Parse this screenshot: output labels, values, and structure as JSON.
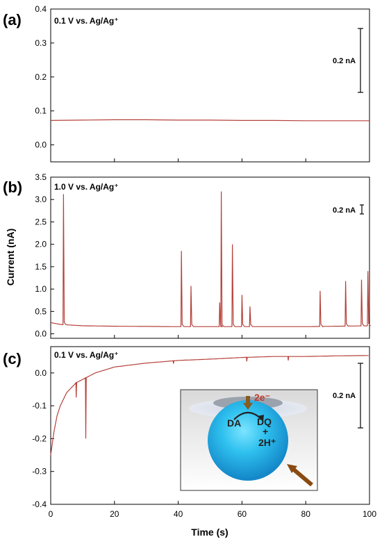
{
  "figure": {
    "xlabel": "Time (s)",
    "ylabel": "Current (nA)",
    "line_color": "#b5413a",
    "scale_bar_label": "0.2 nA"
  },
  "chart_data": [
    {
      "type": "line",
      "panel_label": "(a)",
      "annotation": "0.1 V vs. Ag/Ag⁺",
      "xlim": [
        0,
        100
      ],
      "ylim": [
        -0.05,
        0.4
      ],
      "yticks": [
        0.0,
        0.1,
        0.2,
        0.3,
        0.4
      ],
      "ytick_labels": [
        "0.0",
        "0.1",
        "0.2",
        "0.3",
        "0.4"
      ],
      "x": [
        0,
        10,
        20,
        30,
        40,
        50,
        60,
        70,
        80,
        90,
        100
      ],
      "y": [
        0.072,
        0.073,
        0.074,
        0.074,
        0.073,
        0.073,
        0.072,
        0.072,
        0.071,
        0.071,
        0.071
      ]
    },
    {
      "type": "line",
      "panel_label": "(b)",
      "annotation": "1.0 V vs. Ag/Ag⁺",
      "xlim": [
        0,
        100
      ],
      "ylim": [
        -0.1,
        3.5
      ],
      "yticks": [
        0.0,
        0.5,
        1.0,
        1.5,
        2.0,
        2.5,
        3.0,
        3.5
      ],
      "ytick_labels": [
        "0.0",
        "0.5",
        "1.0",
        "1.5",
        "2.0",
        "2.5",
        "3.0",
        "3.5"
      ],
      "baseline": [
        [
          0,
          0.25
        ],
        [
          3,
          0.21
        ],
        [
          10,
          0.18
        ],
        [
          20,
          0.17
        ],
        [
          40,
          0.16
        ],
        [
          60,
          0.16
        ],
        [
          80,
          0.16
        ],
        [
          100,
          0.18
        ]
      ],
      "spikes": [
        {
          "x": 4.0,
          "y": 3.12
        },
        {
          "x": 41.0,
          "y": 1.85
        },
        {
          "x": 44.0,
          "y": 1.07
        },
        {
          "x": 53.0,
          "y": 0.7
        },
        {
          "x": 53.5,
          "y": 3.18
        },
        {
          "x": 57.0,
          "y": 2.0
        },
        {
          "x": 60.0,
          "y": 0.87
        },
        {
          "x": 62.5,
          "y": 0.61
        },
        {
          "x": 84.5,
          "y": 0.96
        },
        {
          "x": 92.5,
          "y": 1.18
        },
        {
          "x": 97.5,
          "y": 1.21
        },
        {
          "x": 99.5,
          "y": 1.4
        }
      ]
    },
    {
      "type": "line",
      "panel_label": "(c)",
      "annotation": "0.1 V vs. Ag/Ag⁺",
      "xlim": [
        0,
        100
      ],
      "ylim": [
        -0.4,
        0.08
      ],
      "yticks": [
        -0.4,
        -0.3,
        -0.2,
        -0.1,
        0.0
      ],
      "ytick_labels": [
        "-0.4",
        "-0.3",
        "-0.2",
        "-0.1",
        "0.0"
      ],
      "xticks": [
        0,
        20,
        40,
        60,
        80,
        100
      ],
      "xtick_labels": [
        "0",
        "20",
        "40",
        "60",
        "80",
        "100"
      ],
      "decay": [
        [
          0,
          -0.25
        ],
        [
          1,
          -0.18
        ],
        [
          2,
          -0.13
        ],
        [
          3,
          -0.1
        ],
        [
          4,
          -0.08
        ],
        [
          5,
          -0.06
        ],
        [
          6,
          -0.05
        ],
        [
          8,
          -0.03
        ],
        [
          10,
          -0.02
        ],
        [
          14,
          0.0
        ],
        [
          20,
          0.018
        ],
        [
          30,
          0.03
        ],
        [
          40,
          0.038
        ],
        [
          50,
          0.042
        ],
        [
          60,
          0.047
        ],
        [
          70,
          0.05
        ],
        [
          80,
          0.05
        ],
        [
          90,
          0.052
        ],
        [
          100,
          0.053
        ]
      ],
      "dips": [
        {
          "x": 8.0,
          "y": -0.075
        },
        {
          "x": 11.0,
          "y": -0.2
        },
        {
          "x": 38.5,
          "y": 0.028
        },
        {
          "x": 61.5,
          "y": 0.035
        },
        {
          "x": 74.5,
          "y": 0.038
        }
      ],
      "inset": {
        "electron_label": "2e⁻",
        "reactant": "DA",
        "product": "DQ",
        "plus": "+",
        "proton": "2H⁺"
      }
    }
  ]
}
